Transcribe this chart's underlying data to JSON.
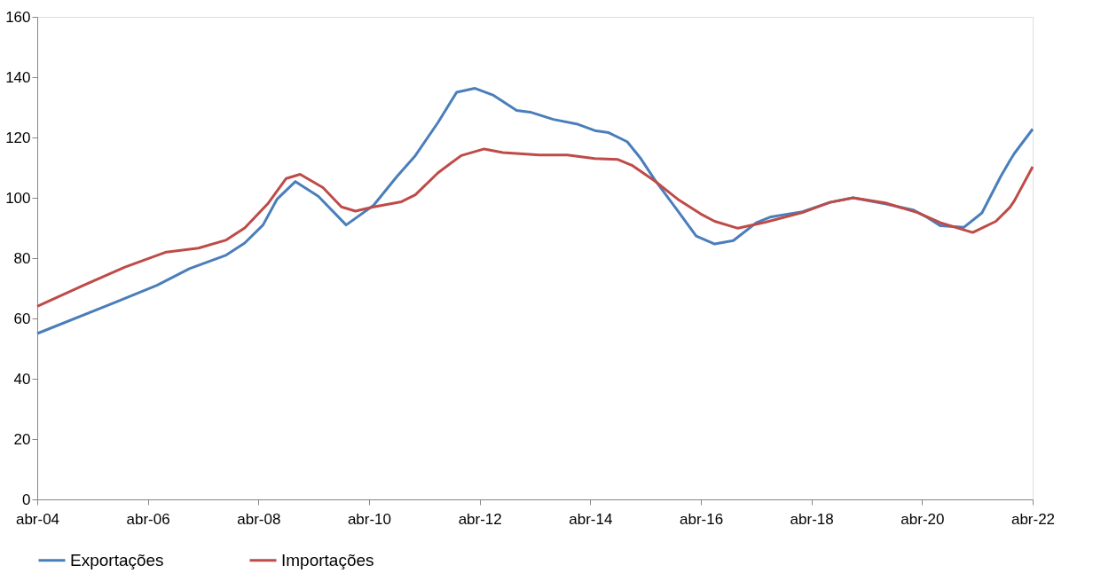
{
  "chart_data": {
    "type": "line",
    "xlim": [
      "2004-04",
      "2022-04"
    ],
    "xticks": [
      {
        "value": "2004-04",
        "label": "abr-04"
      },
      {
        "value": "2006-04",
        "label": "abr-06"
      },
      {
        "value": "2008-04",
        "label": "abr-08"
      },
      {
        "value": "2010-04",
        "label": "abr-10"
      },
      {
        "value": "2012-04",
        "label": "abr-12"
      },
      {
        "value": "2014-04",
        "label": "abr-14"
      },
      {
        "value": "2016-04",
        "label": "abr-16"
      },
      {
        "value": "2018-04",
        "label": "abr-18"
      },
      {
        "value": "2020-04",
        "label": "abr-20"
      },
      {
        "value": "2022-04",
        "label": "abr-22"
      }
    ],
    "ylim": [
      0,
      160
    ],
    "yticks": [
      0,
      20,
      40,
      60,
      80,
      100,
      120,
      140,
      160
    ],
    "grid": false,
    "legend": "bottom",
    "marker": "none",
    "line_style": "solid",
    "series": [
      {
        "name": "Exportações",
        "color": "#4a7ebb",
        "x": [
          "2004-04",
          "2005-09",
          "2006-06",
          "2007-01",
          "2007-09",
          "2008-01",
          "2008-05",
          "2008-08",
          "2008-12",
          "2009-05",
          "2009-11",
          "2010-05",
          "2010-10",
          "2011-02",
          "2011-07",
          "2011-11",
          "2012-03",
          "2012-07",
          "2012-12",
          "2013-03",
          "2013-08",
          "2014-01",
          "2014-05",
          "2014-08",
          "2014-12",
          "2015-03",
          "2015-06",
          "2015-11",
          "2016-03",
          "2016-07",
          "2016-11",
          "2017-04",
          "2017-07",
          "2018-02",
          "2018-08",
          "2019-01",
          "2019-08",
          "2020-02",
          "2020-05",
          "2020-08",
          "2021-01",
          "2021-05",
          "2021-09",
          "2021-11",
          "2021-12",
          "2022-04"
        ],
        "values": [
          55,
          65.4,
          71,
          76.5,
          81,
          85,
          91,
          99.5,
          105.4,
          100.5,
          91,
          97.5,
          107,
          114,
          125,
          135,
          136.3,
          134,
          129,
          128.4,
          126,
          124.5,
          122.3,
          121.6,
          118.6,
          113,
          106,
          95.6,
          87.3,
          84.7,
          85.8,
          91.7,
          93.6,
          95.4,
          98.5,
          100,
          98,
          96,
          93.6,
          90.7,
          90.2,
          95,
          107,
          112.3,
          114.7,
          122.8
        ]
      },
      {
        "name": "Importações",
        "color": "#be4b48",
        "x": [
          "2004-04",
          "2005-02",
          "2005-11",
          "2006-08",
          "2007-03",
          "2007-09",
          "2008-01",
          "2008-06",
          "2008-10",
          "2009-01",
          "2009-06",
          "2009-10",
          "2010-01",
          "2010-05",
          "2010-11",
          "2011-02",
          "2011-07",
          "2011-12",
          "2012-05",
          "2012-09",
          "2013-05",
          "2013-11",
          "2014-05",
          "2014-10",
          "2015-01",
          "2015-06",
          "2015-11",
          "2016-04",
          "2016-07",
          "2016-12",
          "2017-06",
          "2018-02",
          "2018-08",
          "2019-01",
          "2019-08",
          "2020-03",
          "2020-08",
          "2021-03",
          "2021-08",
          "2021-11",
          "2021-12",
          "2022-04"
        ],
        "values": [
          64,
          71,
          77,
          82,
          83.3,
          86,
          90,
          98,
          106.4,
          107.8,
          103.4,
          97,
          95.6,
          97,
          98.7,
          101,
          108.3,
          114,
          116.2,
          115,
          114.2,
          114.2,
          113,
          112.7,
          110.8,
          105.6,
          99.5,
          94.6,
          92.2,
          89.9,
          91.9,
          95.1,
          98.5,
          100,
          98.3,
          95.1,
          91.7,
          88.5,
          92.2,
          96.8,
          99,
          110.3
        ]
      }
    ]
  }
}
